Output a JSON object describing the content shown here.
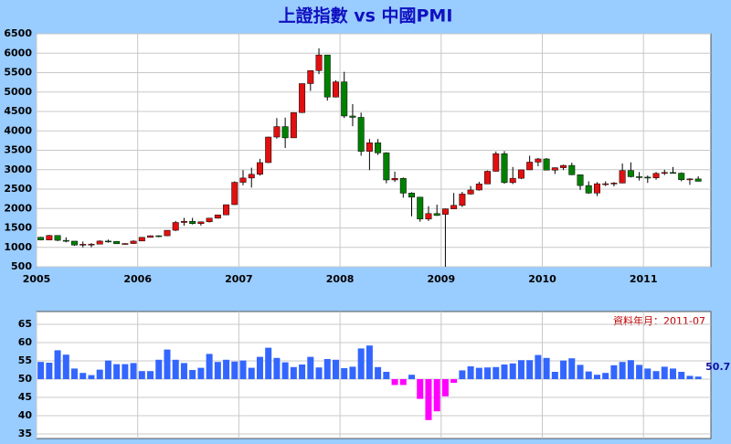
{
  "chart_data": [
    {
      "type": "candlestick",
      "title": "上證指數 vs 中國PMI",
      "categories": [
        "2005",
        null,
        null,
        null,
        null,
        null,
        null,
        null,
        null,
        null,
        null,
        null,
        "2006",
        null,
        null,
        null,
        null,
        null,
        null,
        null,
        null,
        null,
        null,
        null,
        "2007",
        null,
        null,
        null,
        null,
        null,
        null,
        null,
        null,
        null,
        null,
        null,
        "2008",
        null,
        null,
        null,
        null,
        null,
        null,
        null,
        null,
        null,
        null,
        null,
        "2009",
        null,
        null,
        null,
        null,
        null,
        null,
        null,
        null,
        null,
        null,
        null,
        "2010",
        null,
        null,
        null,
        null,
        null,
        null,
        null,
        null,
        null,
        null,
        null,
        "2011",
        null,
        null,
        null,
        null,
        null,
        null
      ],
      "open": [
        1260,
        1190,
        1306,
        1180,
        1160,
        1060,
        1080,
        1083,
        1162,
        1155,
        1092,
        1099,
        1163,
        1258,
        1299,
        1298,
        1440,
        1641,
        1672,
        1612,
        1658,
        1752,
        1837,
        2100,
        2675,
        2786,
        2881,
        3183,
        3841,
        4110,
        3820,
        4471,
        5218,
        5552,
        5955,
        4871,
        5262,
        4383,
        4348,
        3473,
        3693,
        3433,
        2736,
        2776,
        2397,
        2293,
        1729,
        1871,
        1850,
        1991,
        2082,
        2373,
        2477,
        2633,
        2959,
        3412,
        2667,
        2779,
        2996,
        3195,
        3277,
        2989,
        3051,
        3110,
        2870,
        2592,
        2398,
        2638,
        2639,
        2656,
        2979,
        2820,
        2808,
        2790,
        2905,
        2928,
        2911,
        2743,
        2762
      ],
      "high": [
        1270,
        1320,
        1310,
        1260,
        1160,
        1150,
        1110,
        1180,
        1200,
        1160,
        1110,
        1180,
        1260,
        1305,
        1310,
        1440,
        1680,
        1760,
        1760,
        1660,
        1760,
        1840,
        2100,
        2700,
        2990,
        3050,
        3280,
        3850,
        4330,
        4340,
        4480,
        5220,
        5560,
        6124,
        5960,
        5300,
        5520,
        4690,
        4470,
        3790,
        3790,
        3450,
        2950,
        2800,
        2420,
        2300,
        2060,
        2100,
        2000,
        2400,
        2430,
        2580,
        2690,
        2980,
        3470,
        3480,
        3070,
        3000,
        3360,
        3300,
        3300,
        3060,
        3130,
        3180,
        2880,
        2700,
        2680,
        2700,
        2680,
        3160,
        3190,
        2940,
        2850,
        2940,
        3000,
        3070,
        2930,
        2780,
        2830
      ],
      "low": [
        1180,
        1190,
        1160,
        1130,
        1040,
        998,
        1000,
        1080,
        1120,
        1090,
        1075,
        1090,
        1160,
        1250,
        1260,
        1290,
        1420,
        1560,
        1590,
        1560,
        1640,
        1740,
        1830,
        2090,
        2600,
        2540,
        2850,
        3170,
        3800,
        3560,
        3820,
        4460,
        5030,
        5460,
        4780,
        4860,
        4330,
        4120,
        3360,
        2990,
        3380,
        2650,
        2690,
        2280,
        1800,
        1660,
        1680,
        1810,
        500,
        1990,
        2040,
        2360,
        2460,
        2630,
        2950,
        2640,
        2630,
        2760,
        2990,
        3090,
        2990,
        2890,
        2990,
        2860,
        2480,
        2380,
        2320,
        2580,
        2570,
        2650,
        2800,
        2720,
        2660,
        2740,
        2860,
        2900,
        2700,
        2610,
        2700
      ],
      "close": [
        1191,
        1306,
        1181,
        1160,
        1060,
        1080,
        1083,
        1162,
        1155,
        1092,
        1099,
        1161,
        1258,
        1299,
        1298,
        1440,
        1641,
        1672,
        1612,
        1658,
        1752,
        1837,
        2099,
        2675,
        2786,
        2881,
        3183,
        3841,
        4110,
        3820,
        4471,
        5218,
        5552,
        5955,
        4871,
        5262,
        4383,
        4348,
        3473,
        3693,
        3433,
        2736,
        2776,
        2397,
        2293,
        1729,
        1871,
        1821,
        1991,
        2082,
        2373,
        2477,
        2633,
        2959,
        3412,
        2667,
        2779,
        2996,
        3195,
        3277,
        2989,
        3051,
        3110,
        2870,
        2592,
        2398,
        2638,
        2639,
        2656,
        2979,
        2820,
        2808,
        2790,
        2905,
        2928,
        2911,
        2743,
        2762,
        2701
      ],
      "up_color": "#e01010",
      "down_color": "#008000",
      "ylim": [
        500,
        6500
      ],
      "yticks": [
        500,
        1000,
        1500,
        2000,
        2500,
        3000,
        3500,
        4000,
        4500,
        5000,
        5500,
        6000,
        6500
      ],
      "grid": true
    },
    {
      "type": "bar",
      "annotation": "資料年月：2011-07",
      "values": [
        54.7,
        54.5,
        57.9,
        56.7,
        52.9,
        51.7,
        51.1,
        52.6,
        55.1,
        54.1,
        54.1,
        54.4,
        52.2,
        52.2,
        55.3,
        58.1,
        55.3,
        54.4,
        52.5,
        53.1,
        56.9,
        54.7,
        55.3,
        54.8,
        55.1,
        53.1,
        56.1,
        58.6,
        55.8,
        54.6,
        53.3,
        54.0,
        56.1,
        53.2,
        55.5,
        55.3,
        53.0,
        53.4,
        58.4,
        59.2,
        53.3,
        52.0,
        48.4,
        48.4,
        51.2,
        44.6,
        38.8,
        41.2,
        45.3,
        49.0,
        52.4,
        53.5,
        53.1,
        53.2,
        53.3,
        54.0,
        54.3,
        55.2,
        55.2,
        56.6,
        55.8,
        52.0,
        55.1,
        55.7,
        53.9,
        52.1,
        51.2,
        51.7,
        53.8,
        54.7,
        55.2,
        53.9,
        52.9,
        52.2,
        53.4,
        52.9,
        52.0,
        50.9,
        50.7
      ],
      "color": "#3366ff",
      "negative_color": "#ff00ff",
      "baseline": 50,
      "ylim": [
        35,
        65
      ],
      "yticks": [
        35,
        40,
        45,
        50,
        55,
        60,
        65
      ],
      "grid": true
    }
  ]
}
